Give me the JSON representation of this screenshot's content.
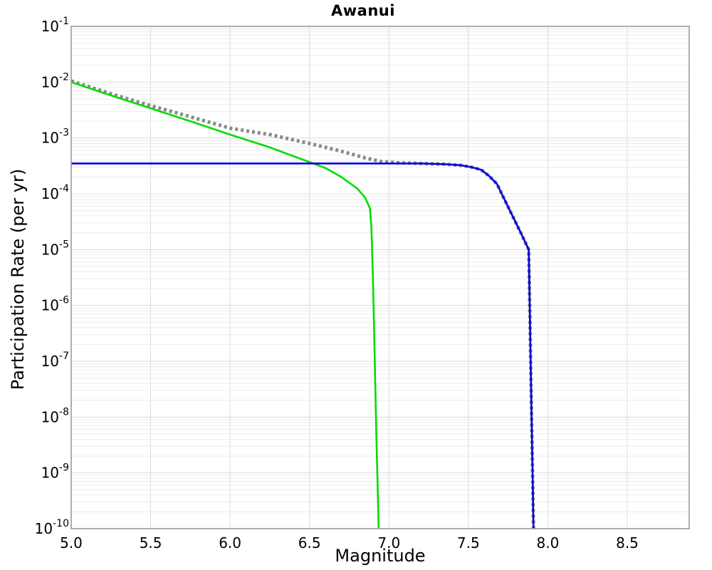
{
  "chart_data": {
    "type": "line",
    "title": "Awanui",
    "xlabel": "Magnitude",
    "ylabel": "Participation Rate (per yr)",
    "xlim": [
      5.0,
      8.89
    ],
    "ylim": [
      1e-10,
      0.1
    ],
    "x_scale": "linear",
    "y_scale": "log",
    "grid": {
      "major": true,
      "minor_log": true
    },
    "legend": "none",
    "x_ticks": [
      5.0,
      5.5,
      6.0,
      6.5,
      7.0,
      7.5,
      8.0,
      8.5
    ],
    "x_tick_labels": [
      "5.0",
      "5.5",
      "6.0",
      "6.5",
      "7.0",
      "7.5",
      "8.0",
      "8.5"
    ],
    "y_tick_exponents": [
      -1,
      -2,
      -3,
      -4,
      -5,
      -6,
      -7,
      -8,
      -9,
      -10
    ],
    "colors": {
      "gray_dotted": "#8a8a8a",
      "green_solid": "#00dd00",
      "blue_solid": "#0000dd",
      "grid_major": "#dcdcdc",
      "grid_minor": "#ececec",
      "axis_border": "#9a9a9a",
      "text": "#000000",
      "background": "#ffffff"
    },
    "series": [
      {
        "name": "total-rate-dotted-gray",
        "color": "#8a8a8a",
        "style": "dotted",
        "width": 5,
        "dash": [
          4,
          4
        ],
        "points": [
          [
            5.0,
            0.0105
          ],
          [
            5.25,
            0.0062
          ],
          [
            5.5,
            0.0038
          ],
          [
            5.75,
            0.0024
          ],
          [
            6.0,
            0.0015
          ],
          [
            6.25,
            0.00115
          ],
          [
            6.5,
            0.0008
          ],
          [
            6.7,
            0.00058
          ],
          [
            6.85,
            0.00044
          ],
          [
            6.95,
            0.00038
          ],
          [
            7.05,
            0.00036
          ],
          [
            7.2,
            0.00035
          ],
          [
            7.35,
            0.00034
          ],
          [
            7.45,
            0.000325
          ],
          [
            7.52,
            0.0003
          ],
          [
            7.58,
            0.00027
          ],
          [
            7.63,
            0.00021
          ],
          [
            7.68,
            0.00015
          ],
          [
            7.73,
            7.6e-05
          ],
          [
            7.78,
            3.9e-05
          ],
          [
            7.83,
            2e-05
          ],
          [
            7.88,
            1e-05
          ],
          [
            7.886,
            1e-06
          ],
          [
            7.892,
            1e-07
          ],
          [
            7.898,
            1e-08
          ],
          [
            7.904,
            1e-09
          ],
          [
            7.91,
            1e-10
          ]
        ]
      },
      {
        "name": "gutenberg-richter-green",
        "color": "#00dd00",
        "style": "solid",
        "width": 2.6,
        "dash": null,
        "points": [
          [
            5.0,
            0.01
          ],
          [
            5.25,
            0.0058
          ],
          [
            5.5,
            0.0034
          ],
          [
            5.75,
            0.002
          ],
          [
            6.0,
            0.00115
          ],
          [
            6.25,
            0.00068
          ],
          [
            6.5,
            0.00037
          ],
          [
            6.6,
            0.00029
          ],
          [
            6.7,
            0.0002
          ],
          [
            6.8,
            0.000125
          ],
          [
            6.85,
            8.5e-05
          ],
          [
            6.88,
            5.5e-05
          ],
          [
            6.89,
            2.5e-05
          ],
          [
            6.9,
            2.5e-06
          ],
          [
            6.91,
            1.3e-07
          ],
          [
            6.92,
            6e-09
          ],
          [
            6.93,
            4e-10
          ],
          [
            6.935,
            1e-10
          ]
        ]
      },
      {
        "name": "characteristic-blue",
        "color": "#0000dd",
        "style": "solid",
        "width": 2.6,
        "dash": null,
        "points": [
          [
            5.0,
            0.00035
          ],
          [
            5.5,
            0.00035
          ],
          [
            6.0,
            0.00035
          ],
          [
            6.5,
            0.00035
          ],
          [
            7.0,
            0.00035
          ],
          [
            7.2,
            0.00035
          ],
          [
            7.35,
            0.00034
          ],
          [
            7.45,
            0.000325
          ],
          [
            7.52,
            0.0003
          ],
          [
            7.58,
            0.00027
          ],
          [
            7.63,
            0.00021
          ],
          [
            7.68,
            0.00015
          ],
          [
            7.73,
            7.6e-05
          ],
          [
            7.78,
            3.9e-05
          ],
          [
            7.83,
            2e-05
          ],
          [
            7.88,
            1e-05
          ],
          [
            7.886,
            1e-06
          ],
          [
            7.892,
            1e-07
          ],
          [
            7.898,
            1e-08
          ],
          [
            7.904,
            1e-09
          ],
          [
            7.91,
            1e-10
          ]
        ]
      }
    ]
  }
}
